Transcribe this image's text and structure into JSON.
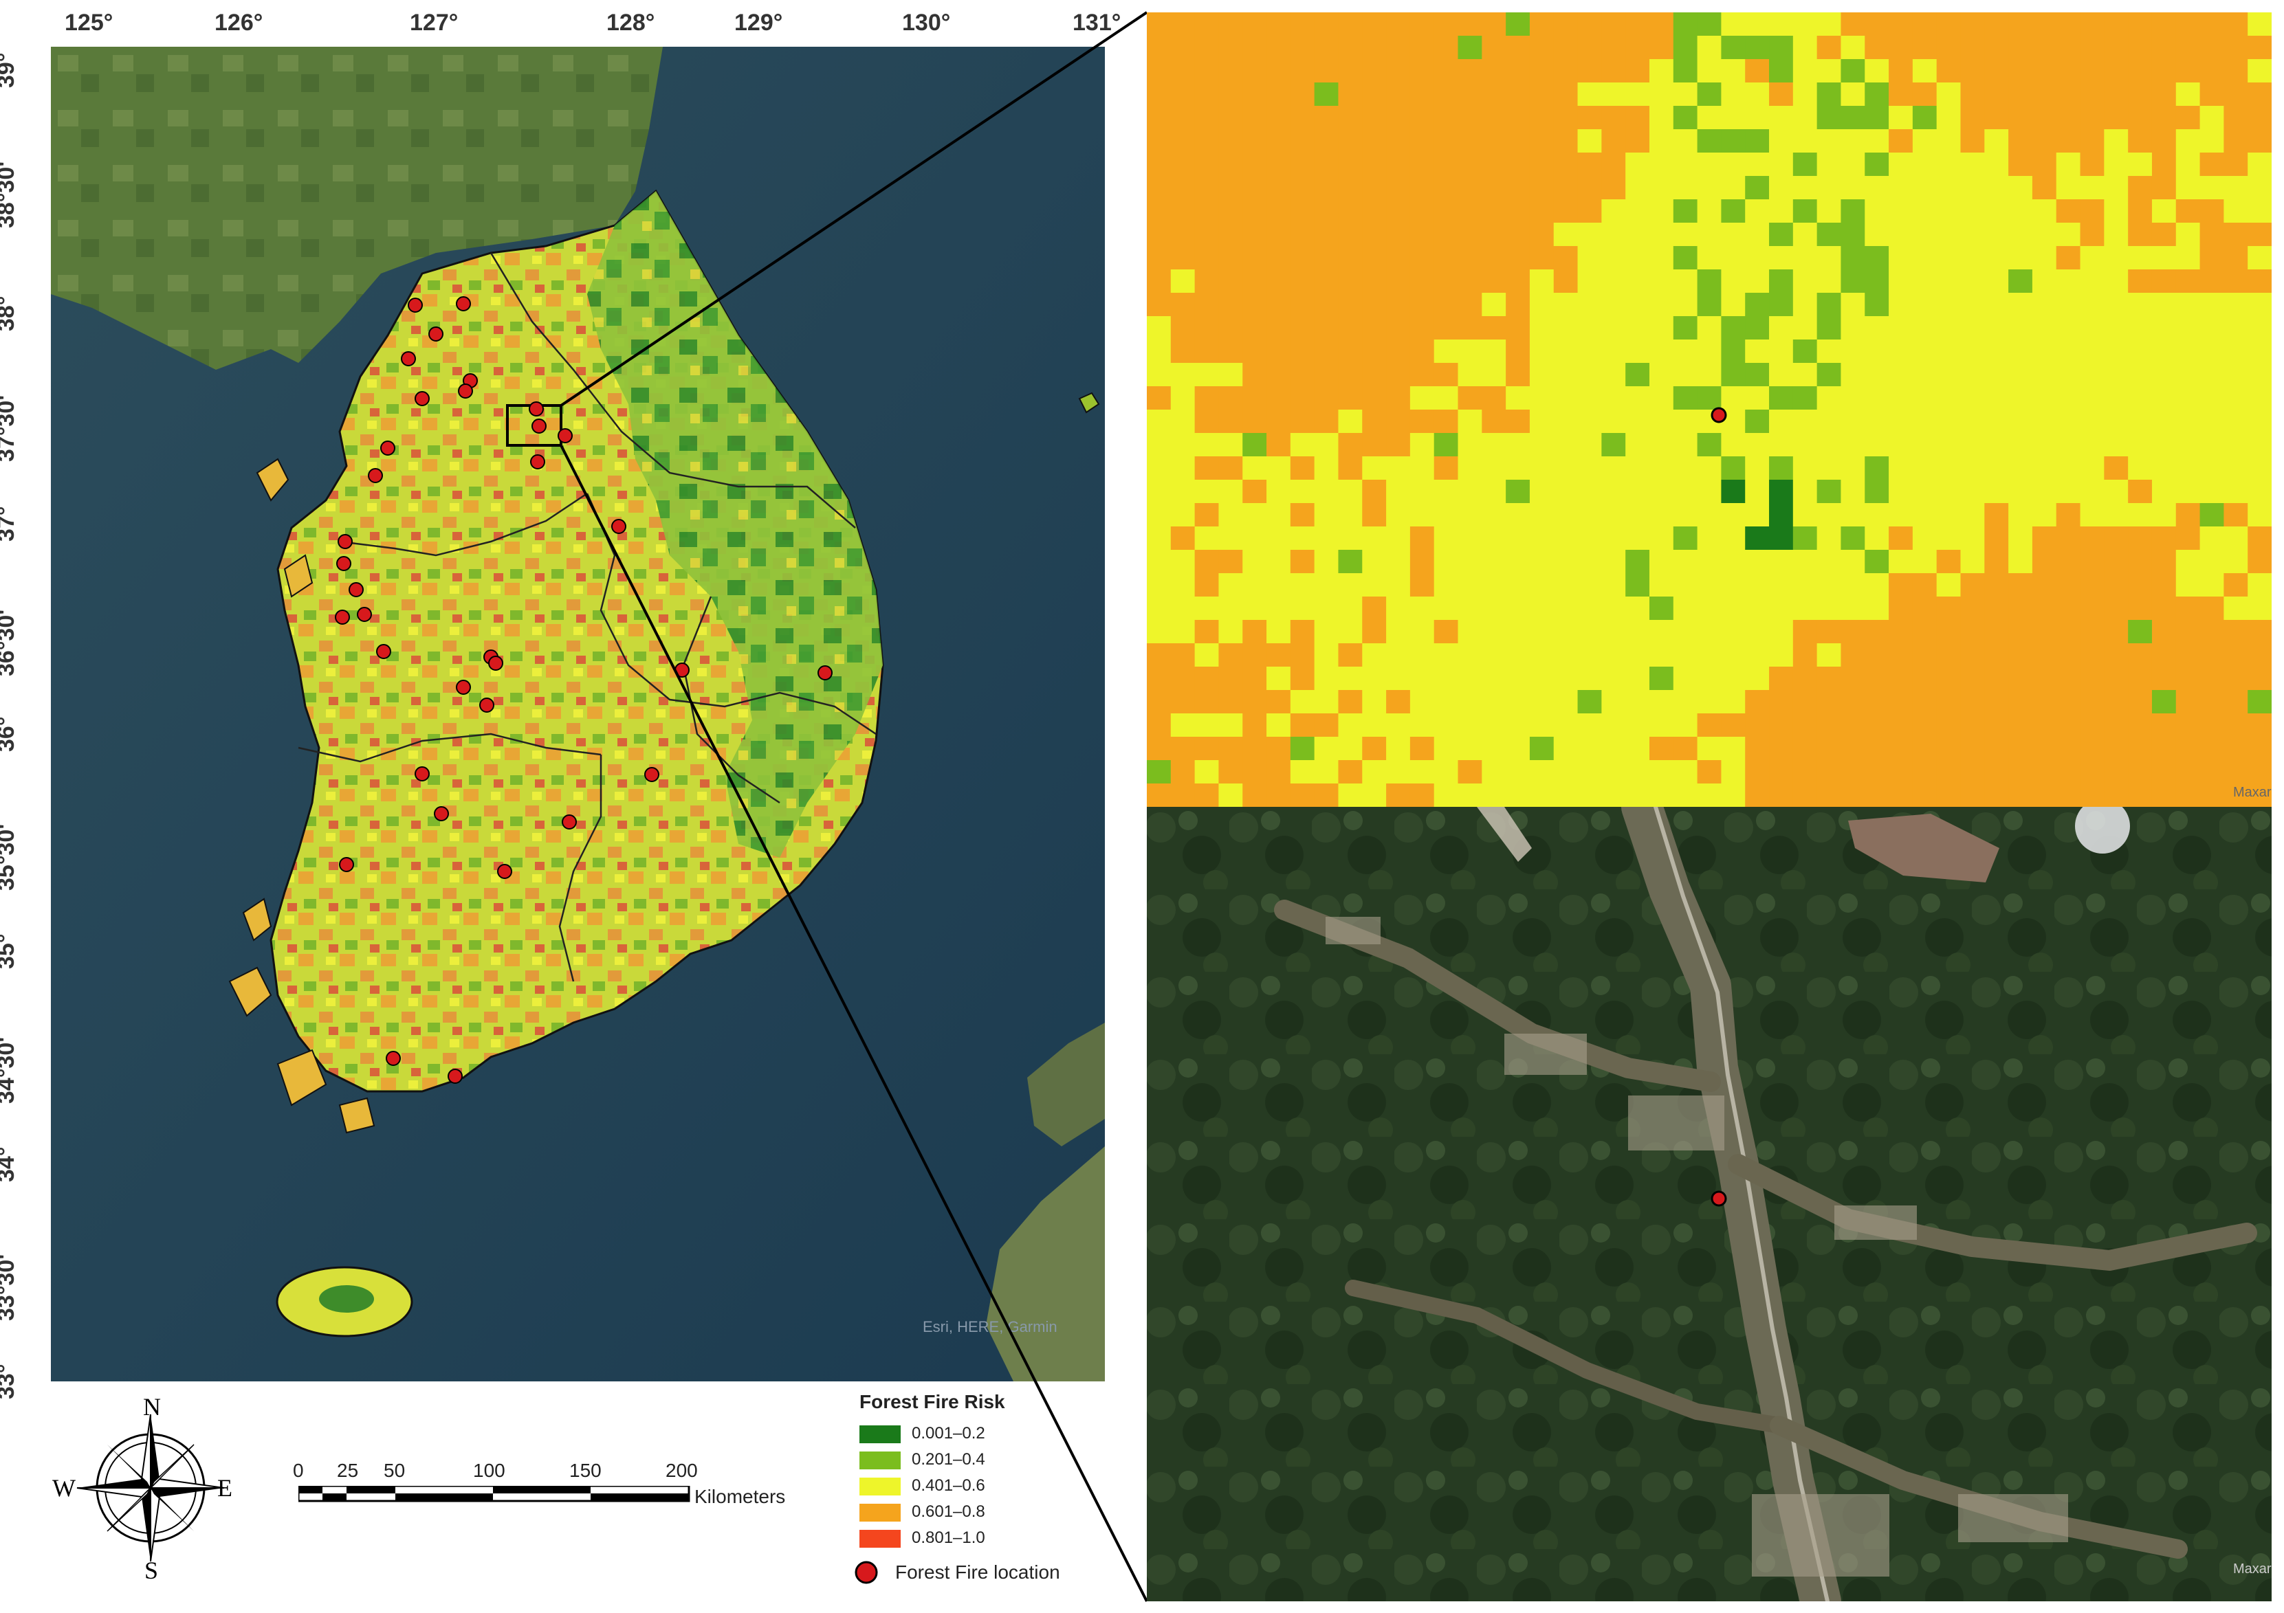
{
  "map": {
    "lon_ticks": [
      "125°",
      "126°",
      "127°",
      "128°",
      "129°",
      "130°",
      "131°"
    ],
    "lat_ticks": [
      "39°",
      "38°30'",
      "38°",
      "37°30'",
      "37°",
      "36°30'",
      "36°",
      "35°30'",
      "35°",
      "34°30'",
      "34°",
      "33°30'",
      "33°"
    ],
    "attribution": "Esri, HERE, Garmin"
  },
  "legend": {
    "title": "Forest Fire Risk",
    "classes": [
      {
        "label": "0.001–0.2",
        "color": "#1a7a1a"
      },
      {
        "label": "0.201–0.4",
        "color": "#7bbd1e"
      },
      {
        "label": "0.401–0.6",
        "color": "#eef52a"
      },
      {
        "label": "0.601–0.8",
        "color": "#f5a41d"
      },
      {
        "label": "0.801–1.0",
        "color": "#f4461e"
      }
    ],
    "fire_label": "Forest Fire location",
    "fire_color": "#d7191c"
  },
  "scale_bar": {
    "ticks": [
      "0",
      "25",
      "50",
      "100",
      "150",
      "200"
    ],
    "unit": "Kilometers"
  },
  "compass": {
    "n": "N",
    "s": "S",
    "e": "E",
    "w": "W"
  },
  "inset": {
    "grid_attribution": "Maxar",
    "sat_attribution": "Maxar"
  }
}
